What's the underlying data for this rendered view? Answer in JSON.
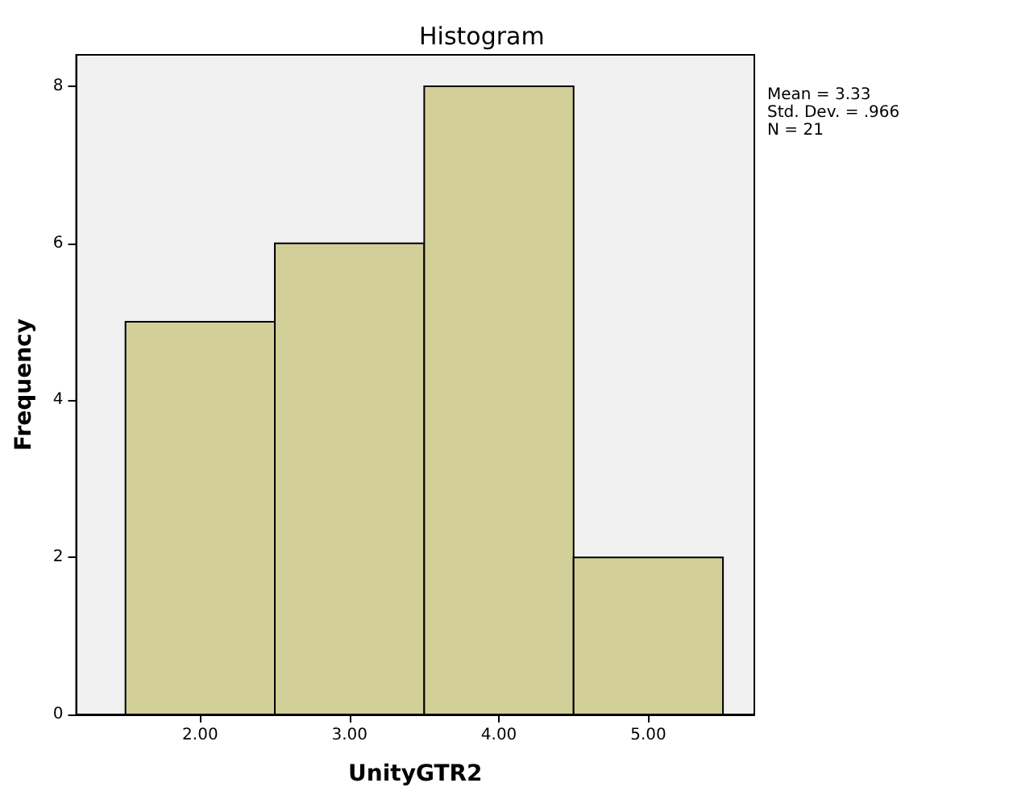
{
  "chart_data": {
    "type": "histogram",
    "title": "Histogram",
    "xlabel": "UnityGTR2",
    "ylabel": "Frequency",
    "bins": [
      1.5,
      2.5,
      3.5,
      4.5,
      5.5
    ],
    "values": [
      5,
      6,
      8,
      2
    ],
    "color": "#d3cf98",
    "xlim": [
      1.17,
      5.71
    ],
    "xticks": [
      {
        "value": 2,
        "label": "2.00"
      },
      {
        "value": 3,
        "label": "3.00"
      },
      {
        "value": 4,
        "label": "4.00"
      },
      {
        "value": 5,
        "label": "5.00"
      }
    ],
    "ylim": [
      0,
      8.4
    ],
    "yticks": [
      0,
      2,
      4,
      6,
      8
    ],
    "grid": false,
    "annotations": [
      "Mean = 3.33",
      "Std. Dev. = .966",
      "N = 21"
    ]
  }
}
